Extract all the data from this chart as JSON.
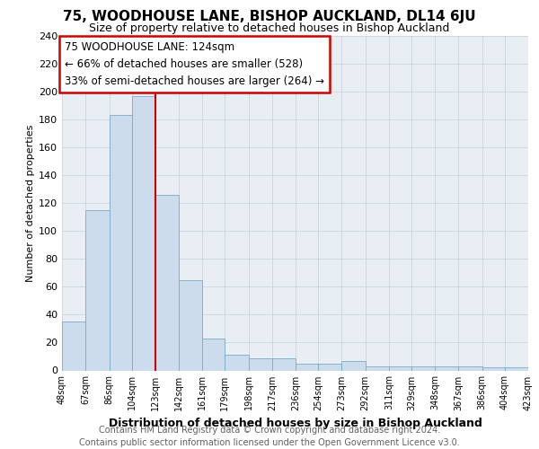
{
  "title1": "75, WOODHOUSE LANE, BISHOP AUCKLAND, DL14 6JU",
  "title2": "Size of property relative to detached houses in Bishop Auckland",
  "xlabel": "Distribution of detached houses by size in Bishop Auckland",
  "ylabel": "Number of detached properties",
  "footer1": "Contains HM Land Registry data © Crown copyright and database right 2024.",
  "footer2": "Contains public sector information licensed under the Open Government Licence v3.0.",
  "annotation_line1": "75 WOODHOUSE LANE: 124sqm",
  "annotation_line2": "← 66% of detached houses are smaller (528)",
  "annotation_line3": "33% of semi-detached houses are larger (264) →",
  "bar_edges": [
    48,
    67,
    86,
    104,
    123,
    142,
    161,
    179,
    198,
    217,
    236,
    254,
    273,
    292,
    311,
    329,
    348,
    367,
    386,
    404,
    423
  ],
  "bar_heights": [
    35,
    115,
    183,
    197,
    126,
    65,
    23,
    11,
    9,
    9,
    5,
    5,
    7,
    3,
    3,
    3,
    3,
    3,
    2,
    2
  ],
  "bar_color": "#cddcec",
  "bar_edge_color": "#7aaac8",
  "vline_color": "#cc0000",
  "vline_x": 123,
  "annotation_box_color": "#cc0000",
  "grid_color": "#c8d0d8",
  "background_color": "#e8eef4",
  "ylim": [
    0,
    240
  ],
  "yticks": [
    0,
    20,
    40,
    60,
    80,
    100,
    120,
    140,
    160,
    180,
    200,
    220,
    240
  ],
  "tick_labels": [
    "48sqm",
    "67sqm",
    "86sqm",
    "104sqm",
    "123sqm",
    "142sqm",
    "161sqm",
    "179sqm",
    "198sqm",
    "217sqm",
    "236sqm",
    "254sqm",
    "273sqm",
    "292sqm",
    "311sqm",
    "329sqm",
    "348sqm",
    "367sqm",
    "386sqm",
    "404sqm",
    "423sqm"
  ],
  "title1_fontsize": 11,
  "title2_fontsize": 9,
  "footer_fontsize": 7,
  "ylabel_fontsize": 8,
  "xlabel_fontsize": 9
}
